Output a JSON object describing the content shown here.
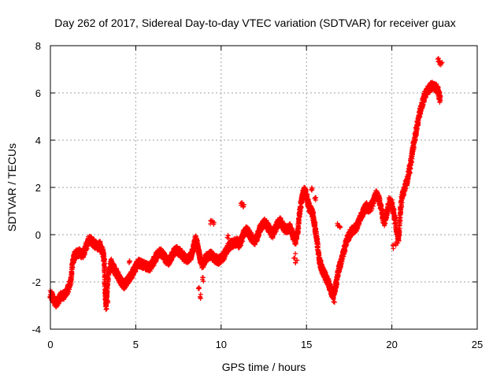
{
  "chart_data": {
    "type": "scatter",
    "title": "Day 262 of 2017, Sidereal Day-to-day VTEC variation (SDTVAR) for receiver guax",
    "xlabel": "GPS time / hours",
    "ylabel": "SDTVAR / TECUs",
    "xlim": [
      0,
      25
    ],
    "ylim": [
      -4,
      8
    ],
    "xticks": [
      0,
      5,
      10,
      15,
      20,
      25
    ],
    "yticks": [
      -4,
      -2,
      0,
      2,
      4,
      6,
      8
    ],
    "grid": true,
    "marker": "+",
    "color": "#ff0000",
    "series": [
      {
        "name": "SDTVAR",
        "trace": [
          [
            0.0,
            -2.5
          ],
          [
            0.15,
            -2.7
          ],
          [
            0.3,
            -2.9
          ],
          [
            0.45,
            -2.8
          ],
          [
            0.6,
            -2.6
          ],
          [
            0.75,
            -2.6
          ],
          [
            0.9,
            -2.45
          ],
          [
            1.05,
            -2.3
          ],
          [
            1.2,
            -1.9
          ],
          [
            1.3,
            -1.2
          ],
          [
            1.4,
            -0.9
          ],
          [
            1.55,
            -0.8
          ],
          [
            1.7,
            -0.75
          ],
          [
            1.85,
            -0.85
          ],
          [
            2.0,
            -0.7
          ],
          [
            2.15,
            -0.35
          ],
          [
            2.3,
            -0.2
          ],
          [
            2.45,
            -0.3
          ],
          [
            2.6,
            -0.4
          ],
          [
            2.75,
            -0.5
          ],
          [
            2.9,
            -0.45
          ],
          [
            3.05,
            -0.7
          ],
          [
            3.15,
            -1.0
          ],
          [
            3.2,
            -2.3
          ],
          [
            3.25,
            -2.9
          ],
          [
            3.3,
            -2.6
          ],
          [
            3.4,
            -1.6
          ],
          [
            3.55,
            -1.2
          ],
          [
            3.7,
            -1.4
          ],
          [
            3.85,
            -1.6
          ],
          [
            4.0,
            -1.8
          ],
          [
            4.15,
            -2.0
          ],
          [
            4.3,
            -2.15
          ],
          [
            4.45,
            -2.0
          ],
          [
            4.6,
            -1.85
          ],
          [
            4.75,
            -1.7
          ],
          [
            4.9,
            -1.5
          ],
          [
            5.05,
            -1.3
          ],
          [
            5.2,
            -1.2
          ],
          [
            5.35,
            -1.25
          ],
          [
            5.5,
            -1.3
          ],
          [
            5.65,
            -1.35
          ],
          [
            5.8,
            -1.4
          ],
          [
            6.0,
            -1.2
          ],
          [
            6.15,
            -1.0
          ],
          [
            6.3,
            -0.8
          ],
          [
            6.45,
            -0.75
          ],
          [
            6.6,
            -0.85
          ],
          [
            6.75,
            -1.05
          ],
          [
            6.9,
            -1.15
          ],
          [
            7.05,
            -1.0
          ],
          [
            7.2,
            -0.8
          ],
          [
            7.35,
            -0.65
          ],
          [
            7.5,
            -0.7
          ],
          [
            7.65,
            -0.8
          ],
          [
            7.8,
            -0.95
          ],
          [
            7.95,
            -1.05
          ],
          [
            8.1,
            -1.0
          ],
          [
            8.25,
            -0.9
          ],
          [
            8.4,
            -0.5
          ],
          [
            8.5,
            -0.2
          ],
          [
            8.6,
            -0.4
          ],
          [
            8.7,
            -0.8
          ],
          [
            8.8,
            -1.1
          ],
          [
            8.9,
            -1.25
          ],
          [
            9.0,
            -1.15
          ],
          [
            9.1,
            -1.0
          ],
          [
            9.25,
            -0.9
          ],
          [
            9.4,
            -0.85
          ],
          [
            9.55,
            -0.95
          ],
          [
            9.7,
            -1.05
          ],
          [
            9.85,
            -1.1
          ],
          [
            10.0,
            -1.0
          ],
          [
            10.15,
            -0.9
          ],
          [
            10.3,
            -0.7
          ],
          [
            10.45,
            -0.5
          ],
          [
            10.6,
            -0.4
          ],
          [
            10.75,
            -0.35
          ],
          [
            10.9,
            -0.3
          ],
          [
            11.05,
            -0.4
          ],
          [
            11.2,
            -0.2
          ],
          [
            11.35,
            0.1
          ],
          [
            11.5,
            0.2
          ],
          [
            11.65,
            0.05
          ],
          [
            11.8,
            -0.15
          ],
          [
            11.95,
            -0.3
          ],
          [
            12.1,
            -0.1
          ],
          [
            12.25,
            0.2
          ],
          [
            12.4,
            0.4
          ],
          [
            12.55,
            0.5
          ],
          [
            12.7,
            0.4
          ],
          [
            12.85,
            0.2
          ],
          [
            13.0,
            0.0
          ],
          [
            13.15,
            0.2
          ],
          [
            13.3,
            0.45
          ],
          [
            13.45,
            0.55
          ],
          [
            13.6,
            0.4
          ],
          [
            13.75,
            0.2
          ],
          [
            13.9,
            0.25
          ],
          [
            14.05,
            0.3
          ],
          [
            14.2,
            0.0
          ],
          [
            14.35,
            -0.3
          ],
          [
            14.5,
            0.2
          ],
          [
            14.6,
            1.0
          ],
          [
            14.7,
            1.4
          ],
          [
            14.8,
            1.75
          ],
          [
            14.9,
            1.85
          ],
          [
            15.0,
            1.6
          ],
          [
            15.1,
            1.3
          ],
          [
            15.2,
            1.1
          ],
          [
            15.3,
            1.0
          ],
          [
            15.4,
            0.75
          ],
          [
            15.5,
            0.3
          ],
          [
            15.6,
            -0.2
          ],
          [
            15.7,
            -0.8
          ],
          [
            15.8,
            -1.2
          ],
          [
            15.9,
            -1.45
          ],
          [
            16.0,
            -1.6
          ],
          [
            16.1,
            -1.75
          ],
          [
            16.2,
            -1.9
          ],
          [
            16.3,
            -2.1
          ],
          [
            16.4,
            -2.3
          ],
          [
            16.5,
            -2.5
          ],
          [
            16.6,
            -2.45
          ],
          [
            16.7,
            -2.2
          ],
          [
            16.8,
            -1.8
          ],
          [
            16.9,
            -1.4
          ],
          [
            17.0,
            -1.2
          ],
          [
            17.15,
            -0.8
          ],
          [
            17.3,
            -0.4
          ],
          [
            17.45,
            -0.1
          ],
          [
            17.6,
            0.1
          ],
          [
            17.75,
            0.2
          ],
          [
            17.9,
            0.3
          ],
          [
            18.05,
            0.5
          ],
          [
            18.2,
            0.8
          ],
          [
            18.35,
            1.0
          ],
          [
            18.5,
            1.2
          ],
          [
            18.65,
            1.1
          ],
          [
            18.8,
            1.2
          ],
          [
            18.95,
            1.5
          ],
          [
            19.1,
            1.7
          ],
          [
            19.25,
            1.5
          ],
          [
            19.4,
            1.0
          ],
          [
            19.55,
            0.5
          ],
          [
            19.7,
            0.9
          ],
          [
            19.85,
            1.4
          ],
          [
            20.0,
            1.3
          ],
          [
            20.15,
            0.8
          ],
          [
            20.3,
            0.1
          ],
          [
            20.4,
            -0.3
          ],
          [
            20.5,
            1.0
          ],
          [
            20.6,
            1.6
          ],
          [
            20.75,
            2.0
          ],
          [
            20.9,
            2.3
          ],
          [
            21.05,
            2.8
          ],
          [
            21.2,
            3.5
          ],
          [
            21.35,
            4.1
          ],
          [
            21.5,
            4.7
          ],
          [
            21.65,
            5.2
          ],
          [
            21.8,
            5.6
          ],
          [
            21.95,
            5.9
          ],
          [
            22.1,
            6.1
          ],
          [
            22.25,
            6.25
          ],
          [
            22.4,
            6.3
          ],
          [
            22.55,
            6.25
          ],
          [
            22.7,
            6.1
          ],
          [
            22.85,
            5.7
          ]
        ],
        "extra_points": [
          [
            15.3,
            1.9
          ],
          [
            15.5,
            1.5
          ],
          [
            16.85,
            0.4
          ],
          [
            16.95,
            0.35
          ],
          [
            9.4,
            0.55
          ],
          [
            9.55,
            0.5
          ],
          [
            8.95,
            -1.9
          ],
          [
            8.8,
            -2.6
          ],
          [
            8.7,
            -2.2
          ],
          [
            3.25,
            -3.1
          ],
          [
            3.35,
            -2.8
          ],
          [
            4.6,
            -1.2
          ],
          [
            22.7,
            7.4
          ],
          [
            22.8,
            7.3
          ],
          [
            22.9,
            7.2
          ],
          [
            11.2,
            1.3
          ],
          [
            11.3,
            1.2
          ],
          [
            10.4,
            -0.1
          ],
          [
            14.3,
            -0.9
          ],
          [
            14.4,
            -1.1
          ],
          [
            16.55,
            -2.7
          ],
          [
            16.6,
            -2.8
          ],
          [
            20.1,
            -0.5
          ],
          [
            20.2,
            -0.4
          ]
        ]
      }
    ]
  }
}
